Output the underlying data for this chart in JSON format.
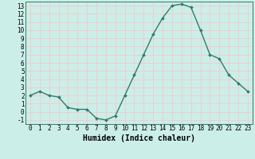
{
  "x": [
    0,
    1,
    2,
    3,
    4,
    5,
    6,
    7,
    8,
    9,
    10,
    11,
    12,
    13,
    14,
    15,
    16,
    17,
    18,
    19,
    20,
    21,
    22,
    23
  ],
  "y": [
    2,
    2.5,
    2,
    1.8,
    0.5,
    0.3,
    0.3,
    -0.8,
    -1,
    -0.5,
    2,
    4.5,
    7,
    9.5,
    11.5,
    13,
    13.2,
    12.8,
    10,
    7,
    6.5,
    4.5,
    3.5,
    2.5
  ],
  "line_color": "#2e7d6e",
  "marker": "D",
  "marker_size": 2.0,
  "bg_color": "#cceee8",
  "grid_color": "#f5c8c8",
  "spine_color": "#2e7d6e",
  "xlabel": "Humidex (Indice chaleur)",
  "xlim": [
    -0.5,
    23.5
  ],
  "ylim": [
    -1.5,
    13.5
  ],
  "xticks": [
    0,
    1,
    2,
    3,
    4,
    5,
    6,
    7,
    8,
    9,
    10,
    11,
    12,
    13,
    14,
    15,
    16,
    17,
    18,
    19,
    20,
    21,
    22,
    23
  ],
  "yticks": [
    -1,
    0,
    1,
    2,
    3,
    4,
    5,
    6,
    7,
    8,
    9,
    10,
    11,
    12,
    13
  ],
  "tick_fontsize": 5.5,
  "xlabel_fontsize": 7.0,
  "line_width": 1.0
}
